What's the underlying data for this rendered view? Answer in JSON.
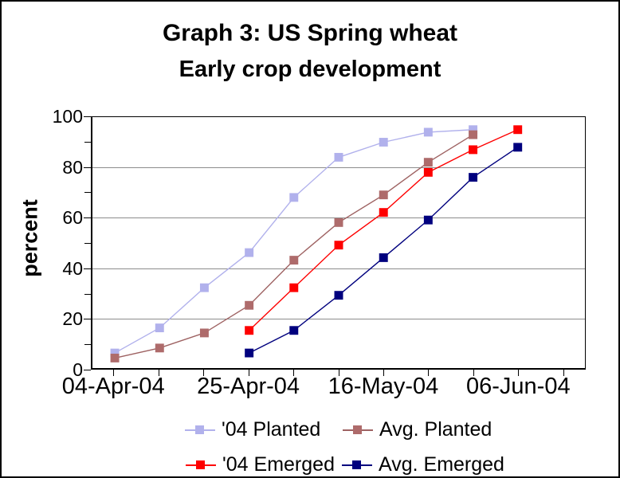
{
  "header": {
    "title": "Graph 3: US Spring wheat",
    "subtitle": "Early crop development"
  },
  "chart_data": {
    "type": "line",
    "title": "Graph 3: US Spring wheat",
    "subtitle": "Early crop development",
    "xlabel": "",
    "ylabel": "percent",
    "ylim": [
      0,
      100
    ],
    "y_major_ticks": [
      0,
      20,
      40,
      60,
      80,
      100
    ],
    "y_minor_ticks": [
      10,
      30,
      50,
      70,
      90
    ],
    "grid": "horizontal-major",
    "gridline_color": "#8c8c8c",
    "axis_color": "#000000",
    "background_color": "#ffffff",
    "categories": [
      "04-Apr-04",
      "11-Apr-04",
      "18-Apr-04",
      "25-Apr-04",
      "02-May-04",
      "09-May-04",
      "16-May-04",
      "23-May-04",
      "30-May-04",
      "06-Jun-04",
      "13-Jun-04"
    ],
    "x_tick_labels": [
      "04-Apr-04",
      "25-Apr-04",
      "16-May-04",
      "06-Jun-04"
    ],
    "x_tick_label_indices": [
      0,
      3,
      6,
      9
    ],
    "legend_position": "bottom",
    "marker": "square",
    "series": [
      {
        "name": "'04 Planted",
        "color": "#b1b1ec",
        "line_color": "#b1b1ec",
        "start_index": 0,
        "values": [
          6,
          16,
          32,
          46,
          68,
          84,
          90,
          94,
          95
        ]
      },
      {
        "name": "Avg. Planted",
        "color": "#ae6b6b",
        "line_color": "#9e6262",
        "start_index": 0,
        "values": [
          4,
          8,
          14,
          25,
          43,
          58,
          69,
          82,
          93
        ]
      },
      {
        "name": "'04 Emerged",
        "color": "#fe0000",
        "line_color": "#fe0000",
        "start_index": 3,
        "values": [
          15,
          32,
          49,
          62,
          78,
          87,
          95
        ]
      },
      {
        "name": "Avg. Emerged",
        "color": "#00007e",
        "line_color": "#00007e",
        "start_index": 3,
        "values": [
          6,
          15,
          29,
          44,
          59,
          76,
          88
        ]
      }
    ]
  }
}
